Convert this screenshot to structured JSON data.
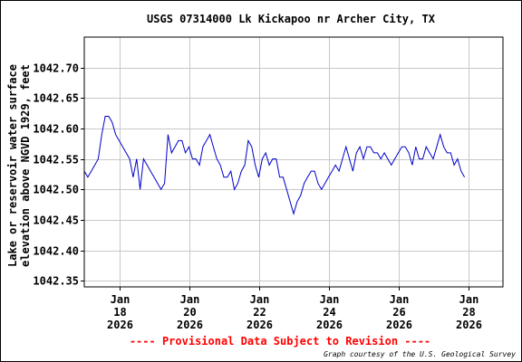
{
  "chart_data": {
    "type": "line",
    "title": "USGS 07314000 Lk Kickapoo nr Archer City, TX",
    "ylabel_lines": [
      "Lake or reservoir water surface",
      "elevation above NGVD 1929, feet"
    ],
    "xlabel": "",
    "ylim": [
      1042.34,
      1042.75
    ],
    "yticks": [
      1042.35,
      1042.4,
      1042.45,
      1042.5,
      1042.55,
      1042.6,
      1042.65,
      1042.7
    ],
    "ytick_labels": [
      "1042.35",
      "1042.40",
      "1042.45",
      "1042.50",
      "1042.55",
      "1042.60",
      "1042.65",
      "1042.70"
    ],
    "xlim_days": [
      17.0,
      29.0
    ],
    "xticks": [
      {
        "day": 18,
        "month": "Jan",
        "date": "18",
        "year": "2026"
      },
      {
        "day": 20,
        "month": "Jan",
        "date": "20",
        "year": "2026"
      },
      {
        "day": 22,
        "month": "Jan",
        "date": "22",
        "year": "2026"
      },
      {
        "day": 24,
        "month": "Jan",
        "date": "24",
        "year": "2026"
      },
      {
        "day": 26,
        "month": "Jan",
        "date": "26",
        "year": "2026"
      },
      {
        "day": 28,
        "month": "Jan",
        "date": "28",
        "year": "2026"
      }
    ],
    "grid": true,
    "series": [
      {
        "color": "#0000cc",
        "x": [
          17.0,
          17.1,
          17.2,
          17.3,
          17.4,
          17.5,
          17.6,
          17.7,
          17.8,
          17.9,
          18.0,
          18.1,
          18.2,
          18.3,
          18.4,
          18.5,
          18.6,
          18.7,
          18.8,
          18.9,
          19.0,
          19.1,
          19.2,
          19.3,
          19.4,
          19.5,
          19.6,
          19.7,
          19.8,
          19.9,
          20.0,
          20.1,
          20.2,
          20.3,
          20.4,
          20.5,
          20.6,
          20.7,
          20.8,
          20.9,
          21.0,
          21.1,
          21.2,
          21.3,
          21.4,
          21.5,
          21.6,
          21.7,
          21.8,
          21.9,
          22.0,
          22.1,
          22.2,
          22.3,
          22.4,
          22.5,
          22.6,
          22.7,
          22.8,
          22.9,
          23.0,
          23.1,
          23.2,
          23.3,
          23.4,
          23.5,
          23.6,
          23.7,
          23.8,
          23.9,
          24.0,
          24.1,
          24.2,
          24.3,
          24.4,
          24.5,
          24.6,
          24.7,
          24.8,
          24.9,
          25.0,
          25.1,
          25.2,
          25.3,
          25.4,
          25.5,
          25.6,
          25.7,
          25.8,
          25.9,
          26.0,
          26.1,
          26.2,
          26.3,
          26.4,
          26.5,
          26.6,
          26.7,
          26.8,
          26.9,
          27.0,
          27.1,
          27.2,
          27.3,
          27.4,
          27.5,
          27.6,
          27.7,
          27.8,
          27.9
        ],
        "y": [
          1042.53,
          1042.52,
          1042.53,
          1042.54,
          1042.55,
          1042.59,
          1042.62,
          1042.62,
          1042.61,
          1042.59,
          1042.58,
          1042.57,
          1042.56,
          1042.55,
          1042.52,
          1042.55,
          1042.5,
          1042.55,
          1042.54,
          1042.53,
          1042.52,
          1042.51,
          1042.5,
          1042.51,
          1042.59,
          1042.56,
          1042.57,
          1042.58,
          1042.58,
          1042.56,
          1042.57,
          1042.55,
          1042.55,
          1042.54,
          1042.57,
          1042.58,
          1042.59,
          1042.57,
          1042.55,
          1042.54,
          1042.52,
          1042.52,
          1042.53,
          1042.5,
          1042.51,
          1042.53,
          1042.54,
          1042.58,
          1042.57,
          1042.54,
          1042.52,
          1042.55,
          1042.56,
          1042.54,
          1042.55,
          1042.55,
          1042.52,
          1042.52,
          1042.5,
          1042.48,
          1042.46,
          1042.48,
          1042.49,
          1042.51,
          1042.52,
          1042.53,
          1042.53,
          1042.51,
          1042.5,
          1042.51,
          1042.52,
          1042.53,
          1042.54,
          1042.53,
          1042.55,
          1042.57,
          1042.55,
          1042.53,
          1042.56,
          1042.57,
          1042.55,
          1042.57,
          1042.57,
          1042.56,
          1042.56,
          1042.55,
          1042.56,
          1042.55,
          1042.54,
          1042.55,
          1042.56,
          1042.57,
          1042.57,
          1042.56,
          1042.54,
          1042.57,
          1042.55,
          1042.55,
          1042.57,
          1042.56,
          1042.55,
          1042.57,
          1042.59,
          1042.57,
          1042.56,
          1042.56,
          1042.54,
          1042.55,
          1042.53,
          1042.52
        ]
      }
    ],
    "colors": {
      "frame": "#000000",
      "grid": "#c8c8c8",
      "line": "#0000cc",
      "provisional_note": "#ff0000"
    }
  },
  "notes": {
    "provisional": "---- Provisional Data Subject to Revision ----",
    "credit": "Graph courtesy of the U.S. Geological Survey"
  }
}
